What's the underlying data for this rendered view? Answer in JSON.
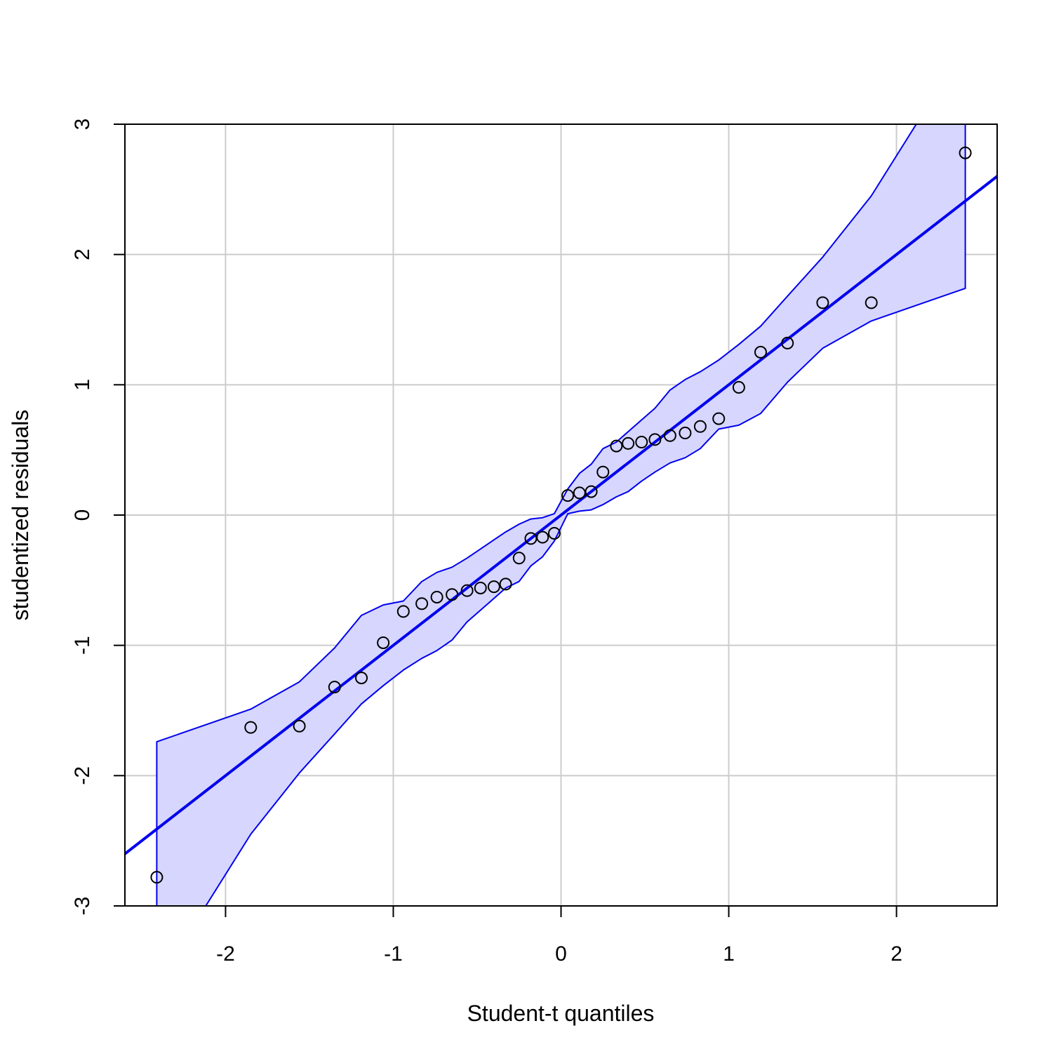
{
  "chart_data": {
    "type": "scatter",
    "title": "",
    "xlabel": "Student-t quantiles",
    "ylabel": "studentized residuals",
    "xlim": [
      -2.6,
      2.6
    ],
    "ylim": [
      -3,
      3
    ],
    "x_ticks": [
      -2,
      -1,
      0,
      1,
      2
    ],
    "y_ticks": [
      -3,
      -2,
      -1,
      0,
      1,
      2,
      3
    ],
    "x_tick_labels": [
      "-2",
      "-1",
      "0",
      "1",
      "2"
    ],
    "y_tick_labels": [
      "-3",
      "-2",
      "-1",
      "0",
      "1",
      "2",
      "3"
    ],
    "grid": true,
    "colors": {
      "line": "#0000ee",
      "band_fill": "#d6d6ff",
      "band_edge": "#0000ee",
      "points": "#000000",
      "grid": "#cccccc"
    },
    "points": {
      "x": [
        -2.41,
        -1.85,
        -1.56,
        -1.35,
        -1.19,
        -1.06,
        -0.94,
        -0.83,
        -0.74,
        -0.65,
        -0.56,
        -0.48,
        -0.4,
        -0.33,
        -0.25,
        -0.18,
        -0.11,
        -0.04,
        0.04,
        0.11,
        0.18,
        0.25,
        0.33,
        0.4,
        0.48,
        0.56,
        0.65,
        0.74,
        0.83,
        0.94,
        1.06,
        1.19,
        1.35,
        1.56,
        1.85,
        2.41
      ],
      "y": [
        -2.78,
        -1.63,
        -1.62,
        -1.32,
        -1.25,
        -0.98,
        -0.74,
        -0.68,
        -0.63,
        -0.61,
        -0.58,
        -0.56,
        -0.55,
        -0.53,
        -0.33,
        -0.18,
        -0.17,
        -0.14,
        0.15,
        0.17,
        0.18,
        0.33,
        0.53,
        0.55,
        0.56,
        0.58,
        0.61,
        0.63,
        0.68,
        0.74,
        0.98,
        1.25,
        1.32,
        1.63,
        1.63,
        2.78
      ]
    },
    "reference_line": {
      "intercept": 0,
      "slope": 1
    },
    "envelope": {
      "x": [
        -2.41,
        -1.85,
        -1.56,
        -1.35,
        -1.19,
        -1.06,
        -0.94,
        -0.83,
        -0.74,
        -0.65,
        -0.56,
        -0.48,
        -0.4,
        -0.33,
        -0.25,
        -0.18,
        -0.11,
        -0.04,
        0.04,
        0.11,
        0.18,
        0.25,
        0.33,
        0.4,
        0.48,
        0.56,
        0.65,
        0.74,
        0.83,
        0.94,
        1.06,
        1.19,
        1.35,
        1.56,
        1.85,
        2.41
      ],
      "upper": [
        -1.74,
        -1.49,
        -1.28,
        -1.02,
        -0.77,
        -0.69,
        -0.66,
        -0.51,
        -0.44,
        -0.4,
        -0.33,
        -0.26,
        -0.19,
        -0.13,
        -0.07,
        -0.03,
        -0.02,
        0.01,
        0.2,
        0.32,
        0.39,
        0.51,
        0.56,
        0.64,
        0.73,
        0.82,
        0.96,
        1.04,
        1.1,
        1.19,
        1.31,
        1.45,
        1.68,
        1.98,
        2.45,
        3.6
      ],
      "lower": [
        -3.6,
        -2.45,
        -1.98,
        -1.68,
        -1.45,
        -1.31,
        -1.19,
        -1.1,
        -1.04,
        -0.96,
        -0.82,
        -0.73,
        -0.64,
        -0.56,
        -0.51,
        -0.39,
        -0.32,
        -0.2,
        0.01,
        0.03,
        0.04,
        0.08,
        0.14,
        0.18,
        0.26,
        0.33,
        0.4,
        0.44,
        0.51,
        0.66,
        0.69,
        0.78,
        1.02,
        1.28,
        1.49,
        1.74
      ]
    }
  }
}
